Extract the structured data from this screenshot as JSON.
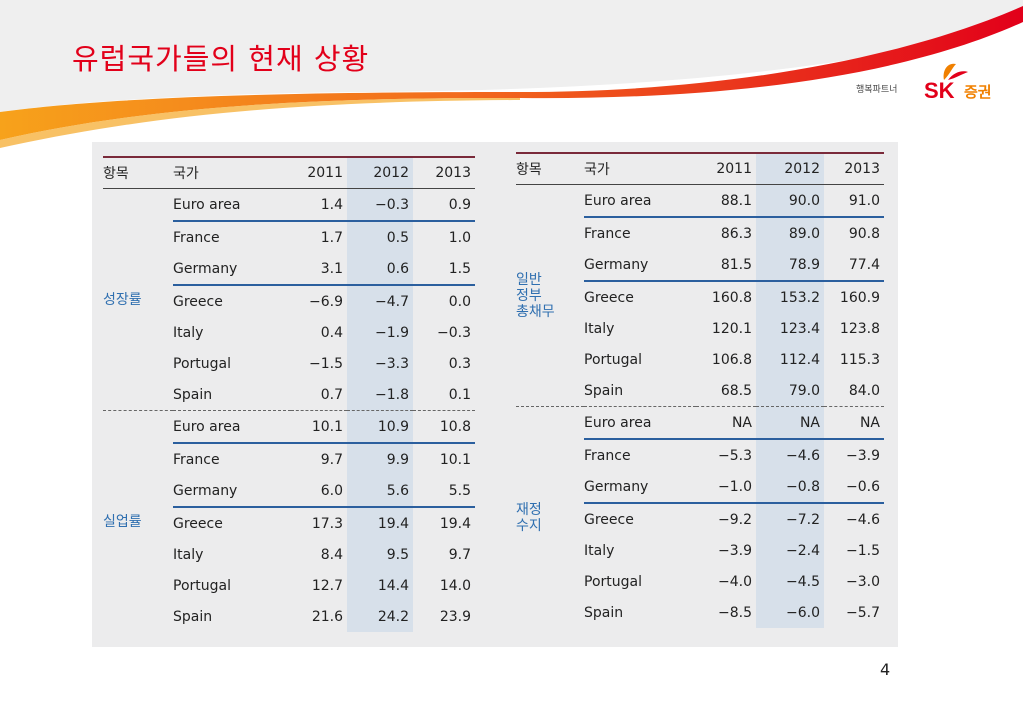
{
  "title": "유럽국가들의 현재 상황",
  "logo": {
    "tagline": "행복파트너",
    "brand": "SK",
    "division": "증권"
  },
  "page_number": "4",
  "left_table": {
    "headers": [
      "항목",
      "국가",
      "2011",
      "2012",
      "2013"
    ],
    "groups": [
      {
        "label": "성장률",
        "rows": [
          [
            "Euro area",
            "1.4",
            "−0.3",
            "0.9"
          ],
          [
            "France",
            "1.7",
            "0.5",
            "1.0"
          ],
          [
            "Germany",
            "3.1",
            "0.6",
            "1.5"
          ],
          [
            "Greece",
            "−6.9",
            "−4.7",
            "0.0"
          ],
          [
            "Italy",
            "0.4",
            "−1.9",
            "−0.3"
          ],
          [
            "Portugal",
            "−1.5",
            "−3.3",
            "0.3"
          ],
          [
            "Spain",
            "0.7",
            "−1.8",
            "0.1"
          ]
        ]
      },
      {
        "label": "실업률",
        "rows": [
          [
            "Euro area",
            "10.1",
            "10.9",
            "10.8"
          ],
          [
            "France",
            "9.7",
            "9.9",
            "10.1"
          ],
          [
            "Germany",
            "6.0",
            "5.6",
            "5.5"
          ],
          [
            "Greece",
            "17.3",
            "19.4",
            "19.4"
          ],
          [
            "Italy",
            "8.4",
            "9.5",
            "9.7"
          ],
          [
            "Portugal",
            "12.7",
            "14.4",
            "14.0"
          ],
          [
            "Spain",
            "21.6",
            "24.2",
            "23.9"
          ]
        ]
      }
    ]
  },
  "right_table": {
    "headers": [
      "항목",
      "국가",
      "2011",
      "2012",
      "2013"
    ],
    "groups": [
      {
        "label": "일반\n정부\n총채무",
        "rows": [
          [
            "Euro area",
            "88.1",
            "90.0",
            "91.0"
          ],
          [
            "France",
            "86.3",
            "89.0",
            "90.8"
          ],
          [
            "Germany",
            "81.5",
            "78.9",
            "77.4"
          ],
          [
            "Greece",
            "160.8",
            "153.2",
            "160.9"
          ],
          [
            "Italy",
            "120.1",
            "123.4",
            "123.8"
          ],
          [
            "Portugal",
            "106.8",
            "112.4",
            "115.3"
          ],
          [
            "Spain",
            "68.5",
            "79.0",
            "84.0"
          ]
        ]
      },
      {
        "label": "재정\n수지",
        "rows": [
          [
            "Euro area",
            "NA",
            "NA",
            "NA"
          ],
          [
            "France",
            "−5.3",
            "−4.6",
            "−3.9"
          ],
          [
            "Germany",
            "−1.0",
            "−0.8",
            "−0.6"
          ],
          [
            "Greece",
            "−9.2",
            "−7.2",
            "−4.6"
          ],
          [
            "Italy",
            "−3.9",
            "−2.4",
            "−1.5"
          ],
          [
            "Portugal",
            "−4.0",
            "−4.5",
            "−3.0"
          ],
          [
            "Spain",
            "−8.5",
            "−6.0",
            "−5.7"
          ]
        ]
      }
    ]
  }
}
